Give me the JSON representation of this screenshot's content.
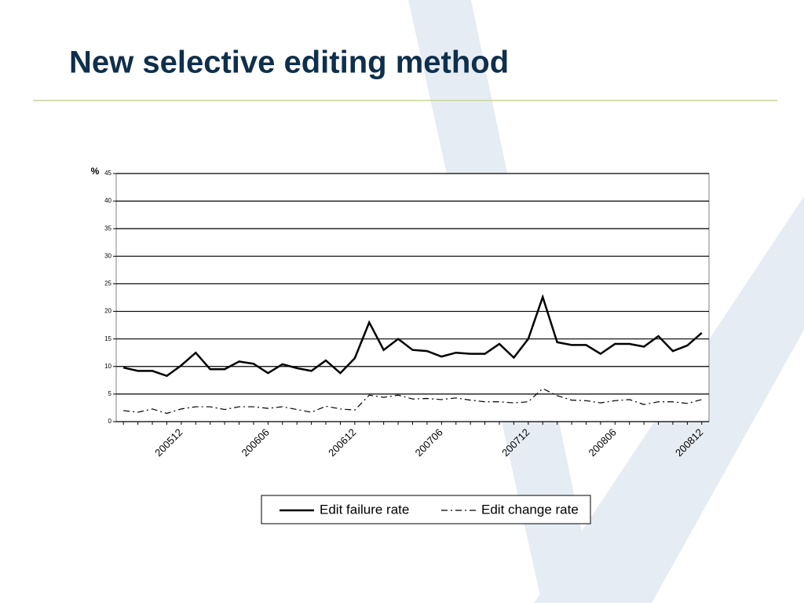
{
  "slide": {
    "title": "New selective editing method"
  },
  "chart_data": {
    "type": "line",
    "y_label": "%",
    "categories": [
      null,
      null,
      null,
      null,
      "200512",
      null,
      null,
      null,
      null,
      null,
      "200606",
      null,
      null,
      null,
      null,
      null,
      "200612",
      null,
      null,
      null,
      null,
      null,
      "200706",
      null,
      null,
      null,
      null,
      null,
      "200712",
      null,
      null,
      null,
      null,
      null,
      "200806",
      null,
      null,
      null,
      null,
      null,
      "200812"
    ],
    "series": [
      {
        "name": "Edit failure rate",
        "color": "#000000",
        "style": "solid",
        "values": [
          9.8,
          9.2,
          9.2,
          8.3,
          10.2,
          12.5,
          9.5,
          9.5,
          10.9,
          10.5,
          8.8,
          10.4,
          9.7,
          9.2,
          11.1,
          8.8,
          11.5,
          18.0,
          13.0,
          15.0,
          13.0,
          12.8,
          11.8,
          12.5,
          12.3,
          12.3,
          14.1,
          11.6,
          15.0,
          22.6,
          14.4,
          13.9,
          13.9,
          12.3,
          14.1,
          14.1,
          13.6,
          15.5,
          12.8,
          13.8,
          16.1
        ]
      },
      {
        "name": "Edit change rate",
        "color": "#000000",
        "style": "dashdot",
        "values": [
          2.0,
          1.7,
          2.3,
          1.5,
          2.3,
          2.7,
          2.7,
          2.2,
          2.7,
          2.7,
          2.4,
          2.7,
          2.2,
          1.7,
          2.8,
          2.3,
          2.1,
          4.8,
          4.4,
          4.8,
          4.1,
          4.2,
          4.0,
          4.3,
          3.9,
          3.6,
          3.6,
          3.4,
          3.6,
          6.0,
          4.7,
          3.9,
          3.8,
          3.4,
          3.8,
          4.0,
          3.1,
          3.6,
          3.6,
          3.3,
          4.0
        ]
      }
    ],
    "ylim": [
      0,
      45
    ],
    "yticks": [
      0,
      5,
      10,
      15,
      20,
      25,
      30,
      35,
      40,
      45
    ],
    "grid": true,
    "legend": "bottom"
  }
}
